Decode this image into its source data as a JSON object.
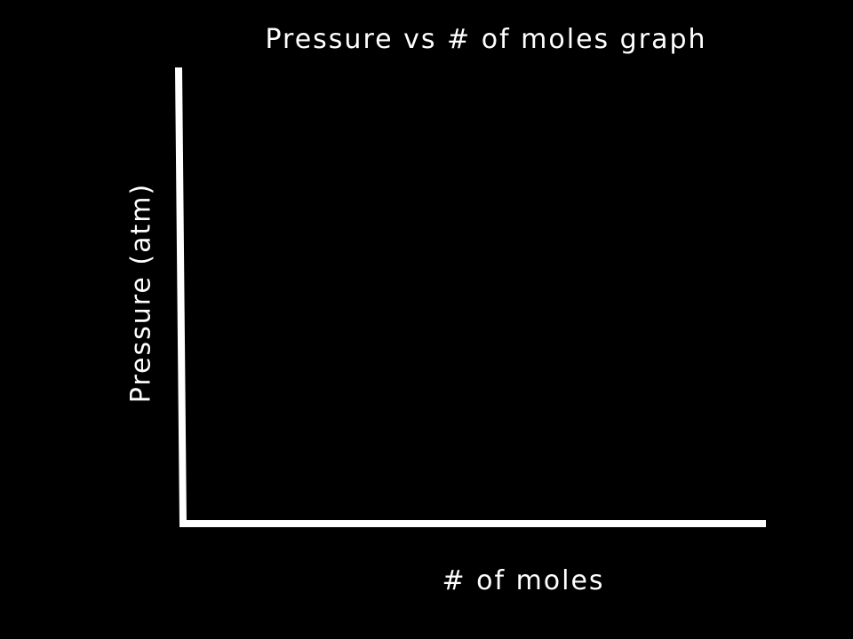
{
  "chart_data": {
    "type": "line",
    "title": "Pressure vs # of moles  graph",
    "xlabel": "# of moles",
    "ylabel": "Pressure (atm)",
    "series": [],
    "grid": false,
    "legend": "none"
  },
  "colors": {
    "background": "#000000",
    "axis": "#ffffff",
    "text": "#ffffff"
  }
}
